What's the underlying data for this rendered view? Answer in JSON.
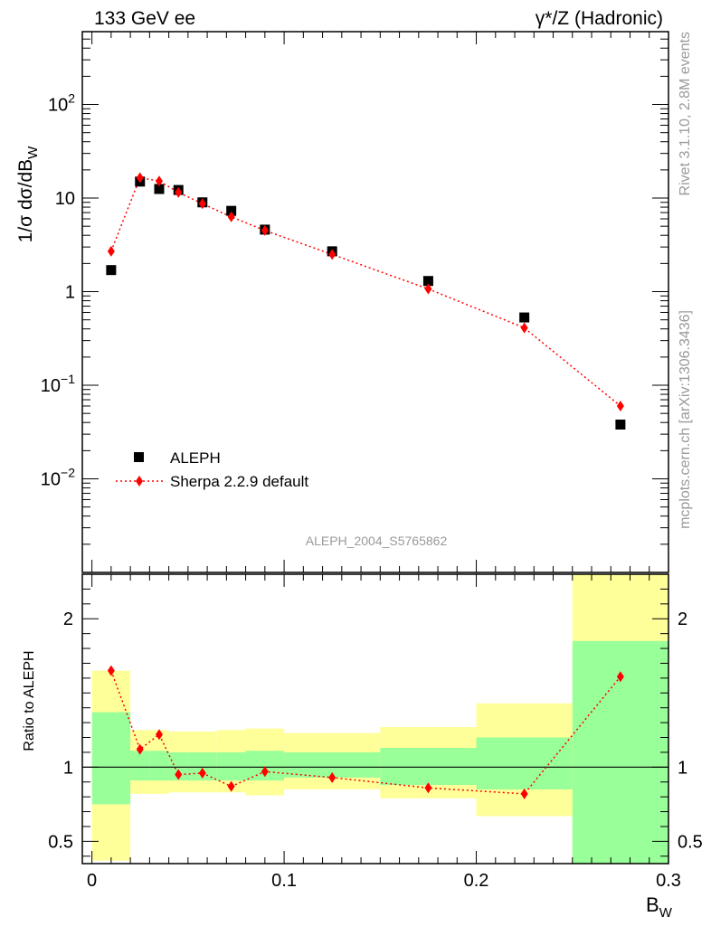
{
  "header": {
    "left": "133 GeV ee",
    "right": "γ*/Z (Hadronic)"
  },
  "side": {
    "rivet": "Rivet 3.1.10,  2.8M events",
    "mcplots": "mcplots.cern.ch [arXiv:1306.3436]"
  },
  "watermark": "ALEPH_2004_S5765862",
  "chart_data": [
    {
      "type": "scatter",
      "ylabel": "1/σ  dσ/dB_W",
      "yscale": "log",
      "ylim": [
        0.001,
        600
      ],
      "xlim": [
        -0.005,
        0.3
      ],
      "y_ticks": [
        "10^-2",
        "10^-1",
        "1",
        "10",
        "10^2"
      ],
      "series": [
        {
          "name": "ALEPH",
          "marker": "square",
          "color": "#000000",
          "x": [
            0.01,
            0.025,
            0.035,
            0.045,
            0.0575,
            0.0725,
            0.09,
            0.125,
            0.175,
            0.225,
            0.275
          ],
          "y": [
            1.7,
            15.0,
            12.5,
            12.2,
            9.0,
            7.3,
            4.6,
            2.7,
            1.3,
            0.53,
            0.038
          ]
        },
        {
          "name": "Sherpa 2.2.9 default",
          "marker": "diamond",
          "line": "dotted",
          "color": "#ff0000",
          "x": [
            0.01,
            0.025,
            0.035,
            0.045,
            0.0575,
            0.0725,
            0.09,
            0.125,
            0.175,
            0.225,
            0.275
          ],
          "y": [
            2.7,
            16.5,
            15.2,
            11.5,
            8.7,
            6.3,
            4.5,
            2.5,
            1.07,
            0.41,
            0.06
          ]
        }
      ]
    },
    {
      "type": "scatter",
      "ylabel": "Ratio to ALEPH",
      "xlabel": "B_W",
      "ylim": [
        0.35,
        2.3
      ],
      "xlim": [
        -0.005,
        0.3
      ],
      "x_ticks": [
        "0",
        "0.1",
        "0.2",
        "0.3"
      ],
      "y_ticks": [
        "0.5",
        "1",
        "2"
      ],
      "bands": {
        "bin_edges": [
          0.0,
          0.02,
          0.03,
          0.04,
          0.05,
          0.065,
          0.08,
          0.1,
          0.15,
          0.2,
          0.25,
          0.3
        ],
        "yellow_lo": [
          0.37,
          0.82,
          0.82,
          0.83,
          0.83,
          0.83,
          0.81,
          0.85,
          0.79,
          0.67,
          0.0
        ],
        "yellow_hi": [
          1.65,
          1.25,
          1.25,
          1.24,
          1.24,
          1.25,
          1.26,
          1.23,
          1.27,
          1.43,
          3.0
        ],
        "green_lo": [
          0.75,
          0.91,
          0.91,
          0.91,
          0.91,
          0.91,
          0.91,
          0.93,
          0.88,
          0.85,
          0.0
        ],
        "green_hi": [
          1.37,
          1.11,
          1.11,
          1.1,
          1.1,
          1.1,
          1.11,
          1.1,
          1.13,
          1.2,
          1.85
        ],
        "yellow_color": "#ffff99",
        "green_color": "#99ff99"
      },
      "series": [
        {
          "name": "Sherpa 2.2.9 default",
          "marker": "diamond",
          "line": "dotted",
          "color": "#ff0000",
          "x": [
            0.01,
            0.025,
            0.035,
            0.045,
            0.0575,
            0.0725,
            0.09,
            0.125,
            0.175,
            0.225,
            0.275
          ],
          "y": [
            1.65,
            1.12,
            1.22,
            0.95,
            0.96,
            0.87,
            0.97,
            0.93,
            0.86,
            0.82,
            1.61
          ]
        }
      ],
      "reference_line": 1
    }
  ]
}
